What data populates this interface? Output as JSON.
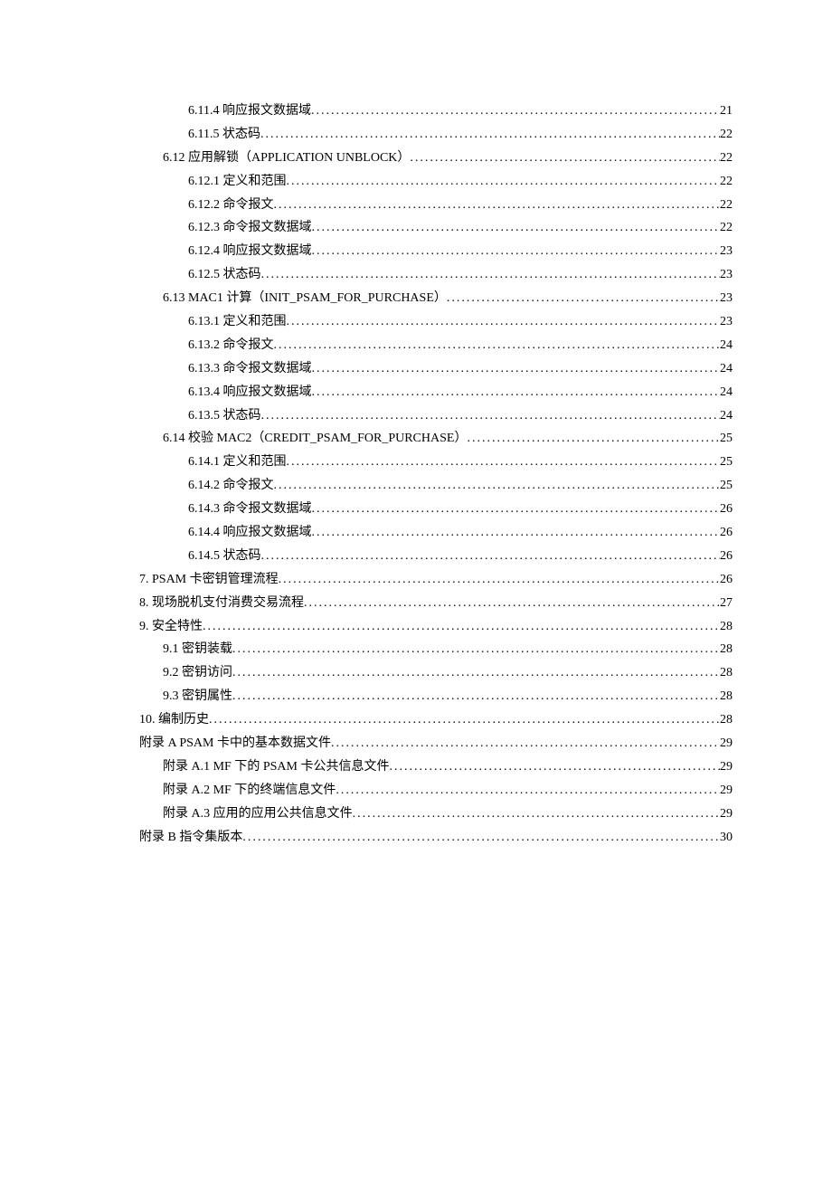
{
  "toc": [
    {
      "indent": 3,
      "text": "6.11.4  响应报文数据域",
      "page": "21"
    },
    {
      "indent": 3,
      "text": "6.11.5  状态码",
      "page": "22"
    },
    {
      "indent": 2,
      "text": "6.12  应用解锁（APPLICATION UNBLOCK）",
      "page": "22"
    },
    {
      "indent": 3,
      "text": "6.12.1  定义和范围",
      "page": "22"
    },
    {
      "indent": 3,
      "text": "6.12.2  命令报文",
      "page": "22"
    },
    {
      "indent": 3,
      "text": "6.12.3  命令报文数据域",
      "page": "22"
    },
    {
      "indent": 3,
      "text": "6.12.4  响应报文数据域",
      "page": "23"
    },
    {
      "indent": 3,
      "text": "6.12.5  状态码",
      "page": "23"
    },
    {
      "indent": 2,
      "text": "6.13 MAC1 计算（INIT_PSAM_FOR_PURCHASE）",
      "page": "23"
    },
    {
      "indent": 3,
      "text": "6.13.1  定义和范围",
      "page": "23"
    },
    {
      "indent": 3,
      "text": "6.13.2  命令报文",
      "page": "24"
    },
    {
      "indent": 3,
      "text": "6.13.3  命令报文数据域",
      "page": "24"
    },
    {
      "indent": 3,
      "text": "6.13.4  响应报文数据域",
      "page": "24"
    },
    {
      "indent": 3,
      "text": "6.13.5  状态码",
      "page": "24"
    },
    {
      "indent": 2,
      "text": "6.14  校验 MAC2（CREDIT_PSAM_FOR_PURCHASE）",
      "page": "25"
    },
    {
      "indent": 3,
      "text": "6.14.1  定义和范围",
      "page": "25"
    },
    {
      "indent": 3,
      "text": "6.14.2  命令报文",
      "page": "25"
    },
    {
      "indent": 3,
      "text": "6.14.3  命令报文数据域",
      "page": "26"
    },
    {
      "indent": 3,
      "text": "6.14.4  响应报文数据域",
      "page": "26"
    },
    {
      "indent": 3,
      "text": "6.14.5  状态码",
      "page": "26"
    },
    {
      "indent": 1,
      "text": "7.   PSAM 卡密钥管理流程",
      "page": "26"
    },
    {
      "indent": 1,
      "text": "8.   现场脱机支付消费交易流程",
      "page": "27"
    },
    {
      "indent": 1,
      "text": "9.   安全特性",
      "page": "28"
    },
    {
      "indent": 2,
      "text": "9.1  密钥装载",
      "page": "28"
    },
    {
      "indent": 2,
      "text": "9.2  密钥访问",
      "page": "28"
    },
    {
      "indent": 2,
      "text": "9.3  密钥属性",
      "page": "28"
    },
    {
      "indent": 1,
      "text": "10.  编制历史",
      "page": "28"
    },
    {
      "indent": 1,
      "text": "附录 A PSAM 卡中的基本数据文件",
      "page": "29"
    },
    {
      "indent": 2,
      "text": "附录 A.1 MF 下的 PSAM 卡公共信息文件",
      "page": "29"
    },
    {
      "indent": 2,
      "text": "附录 A.2 MF 下的终端信息文件",
      "page": "29"
    },
    {
      "indent": 2,
      "text": "附录 A.3  应用的应用公共信息文件",
      "page": "29"
    },
    {
      "indent": 1,
      "text": "附录 B  指令集版本",
      "page": "30"
    }
  ]
}
